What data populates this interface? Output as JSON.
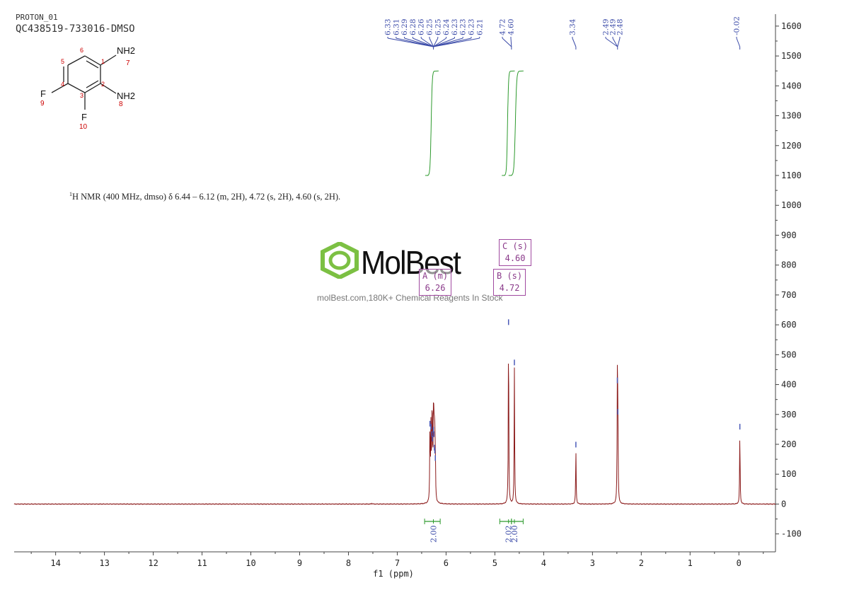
{
  "header": {
    "experiment": "PROTON_01",
    "sample": "QC438519-733016-DMSO"
  },
  "summary": {
    "sup": "1",
    "text": "H NMR (400 MHz, dmso) δ 6.44 – 6.12 (m, 2H), 4.72 (s, 2H), 4.60 (s, 2H)."
  },
  "logo": {
    "name": "MolBest",
    "tagline": "molBest.com,180K+ Chemical Reagents In Stock"
  },
  "molecule": {
    "atoms": [
      {
        "label": "NH2",
        "num": "7"
      },
      {
        "label": "NH2",
        "num": "8"
      },
      {
        "label": "F",
        "num": "9"
      },
      {
        "label": "F",
        "num": "10"
      }
    ],
    "ring_numbers": [
      "1",
      "2",
      "3",
      "4",
      "5",
      "6"
    ]
  },
  "annotations": [
    {
      "id": "A",
      "label": "A (m)",
      "shift": "6.26"
    },
    {
      "id": "B",
      "label": "B (s)",
      "shift": "4.72"
    },
    {
      "id": "C",
      "label": "C (s)",
      "shift": "4.60"
    }
  ],
  "chart_data": {
    "type": "line",
    "xlabel": "f1 (ppm)",
    "ylabel": "",
    "xlim": [
      14.85,
      -0.75
    ],
    "ylim": [
      -160,
      1640
    ],
    "x_ticks": [
      14,
      13,
      12,
      11,
      10,
      9,
      8,
      7,
      6,
      5,
      4,
      3,
      2,
      1,
      0
    ],
    "y_ticks": [
      -100,
      0,
      100,
      200,
      300,
      400,
      500,
      600,
      700,
      800,
      900,
      1000,
      1100,
      1200,
      1300,
      1400,
      1500,
      1600
    ],
    "series": [
      {
        "type": "spectrum",
        "color": "#8b1a1a",
        "peaks": [
          {
            "ppm": 6.33,
            "height": 250
          },
          {
            "ppm": 6.31,
            "height": 240
          },
          {
            "ppm": 6.29,
            "height": 215
          },
          {
            "ppm": 6.28,
            "height": 200
          },
          {
            "ppm": 6.26,
            "height": 230
          },
          {
            "ppm": 6.25,
            "height": 215
          },
          {
            "ppm": 6.24,
            "height": 170
          },
          {
            "ppm": 6.23,
            "height": 160
          },
          {
            "ppm": 6.22,
            "height": 135
          },
          {
            "ppm": 4.72,
            "height": 590
          },
          {
            "ppm": 4.6,
            "height": 455
          },
          {
            "ppm": 3.34,
            "height": 180
          },
          {
            "ppm": 2.49,
            "height": 395
          },
          {
            "ppm": 2.48,
            "height": 290
          },
          {
            "ppm": -0.02,
            "height": 240
          },
          {
            "ppm": 7.52,
            "height": 3
          }
        ]
      }
    ],
    "peak_labels": [
      {
        "group": "multiplet",
        "values": [
          "6.33",
          "6.31",
          "6.29",
          "6.28",
          "6.26",
          "6.25",
          "6.25",
          "6.24",
          "6.23",
          "6.23",
          "6.23",
          "6.21"
        ]
      },
      {
        "group": "pair",
        "values": [
          "4.72",
          "4.60"
        ]
      },
      {
        "group": "single",
        "values": [
          "3.34"
        ]
      },
      {
        "group": "triplet",
        "values": [
          "2.49",
          "2.49",
          "2.48"
        ]
      },
      {
        "group": "single",
        "values": [
          "-0.02"
        ]
      }
    ],
    "integrals": [
      {
        "from": 6.44,
        "to": 6.12,
        "value": "2.00",
        "center": 6.26
      },
      {
        "from": 4.9,
        "to": 4.66,
        "value": "2.02",
        "center": 4.72
      },
      {
        "from": 4.66,
        "to": 4.42,
        "value": "2.00",
        "center": 4.6
      }
    ],
    "integral_curves": [
      {
        "from": 6.37,
        "to": 6.24,
        "low": 1100,
        "high": 1450
      },
      {
        "from": 4.8,
        "to": 4.68,
        "low": 1100,
        "high": 1450
      },
      {
        "from": 4.66,
        "to": 4.5,
        "low": 1100,
        "high": 1450
      }
    ]
  }
}
